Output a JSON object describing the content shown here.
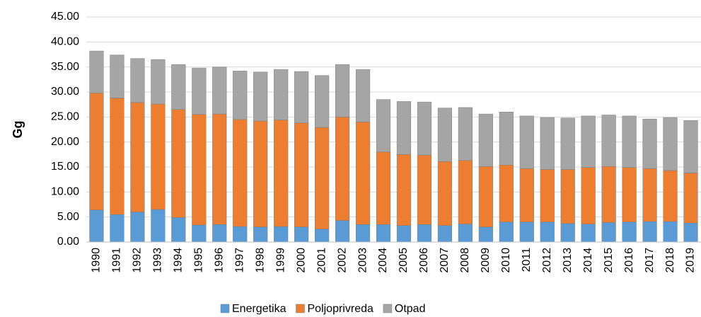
{
  "chart_data": {
    "type": "stacked_bar",
    "y_label": "Gg",
    "categories": [
      "1990",
      "1991",
      "1992",
      "1993",
      "1994",
      "1995",
      "1996",
      "1997",
      "1998",
      "1999",
      "2000",
      "2001",
      "2002",
      "2003",
      "2004",
      "2005",
      "2006",
      "2007",
      "2008",
      "2009",
      "2010",
      "2011",
      "2012",
      "2013",
      "2014",
      "2015",
      "2016",
      "2017",
      "2018",
      "2019"
    ],
    "series": [
      {
        "name": "Energetika",
        "color": "#5b9bd5",
        "values": [
          6.4,
          5.5,
          6.0,
          6.5,
          4.9,
          3.4,
          3.5,
          3.1,
          3.0,
          3.1,
          3.0,
          2.6,
          4.3,
          3.5,
          3.5,
          3.3,
          3.5,
          3.3,
          3.6,
          3.0,
          4.0,
          4.0,
          4.0,
          3.7,
          3.6,
          3.9,
          4.0,
          4.1,
          4.1,
          3.8
        ]
      },
      {
        "name": "Poljoprivreda",
        "color": "#ed7d31",
        "values": [
          23.4,
          23.3,
          21.9,
          21.1,
          21.6,
          22.1,
          22.1,
          21.4,
          21.2,
          21.3,
          20.8,
          20.3,
          20.7,
          20.5,
          14.5,
          14.2,
          13.9,
          12.8,
          12.7,
          12.1,
          11.4,
          10.7,
          10.5,
          10.8,
          11.3,
          11.2,
          10.9,
          10.6,
          10.2,
          10.0
        ]
      },
      {
        "name": "Otpad",
        "color": "#a5a5a5",
        "values": [
          8.4,
          8.6,
          8.8,
          8.9,
          9.0,
          9.3,
          9.4,
          9.7,
          9.8,
          10.1,
          10.3,
          10.4,
          10.5,
          10.5,
          10.5,
          10.6,
          10.6,
          10.7,
          10.6,
          10.5,
          10.6,
          10.5,
          10.4,
          10.3,
          10.3,
          10.3,
          10.3,
          9.9,
          10.6,
          10.5
        ]
      }
    ],
    "ylim": [
      0,
      45
    ],
    "yticks": [
      {
        "value": 0,
        "label": "0.00"
      },
      {
        "value": 5,
        "label": "5.00"
      },
      {
        "value": 10,
        "label": "10.00"
      },
      {
        "value": 15,
        "label": "15.00"
      },
      {
        "value": 20,
        "label": "20.00"
      },
      {
        "value": 25,
        "label": "25.00"
      },
      {
        "value": 30,
        "label": "30.00"
      },
      {
        "value": 35,
        "label": "35.00"
      },
      {
        "value": 40,
        "label": "40.00"
      },
      {
        "value": 45,
        "label": "45.00"
      }
    ],
    "grid": true,
    "legend": "bottom"
  }
}
